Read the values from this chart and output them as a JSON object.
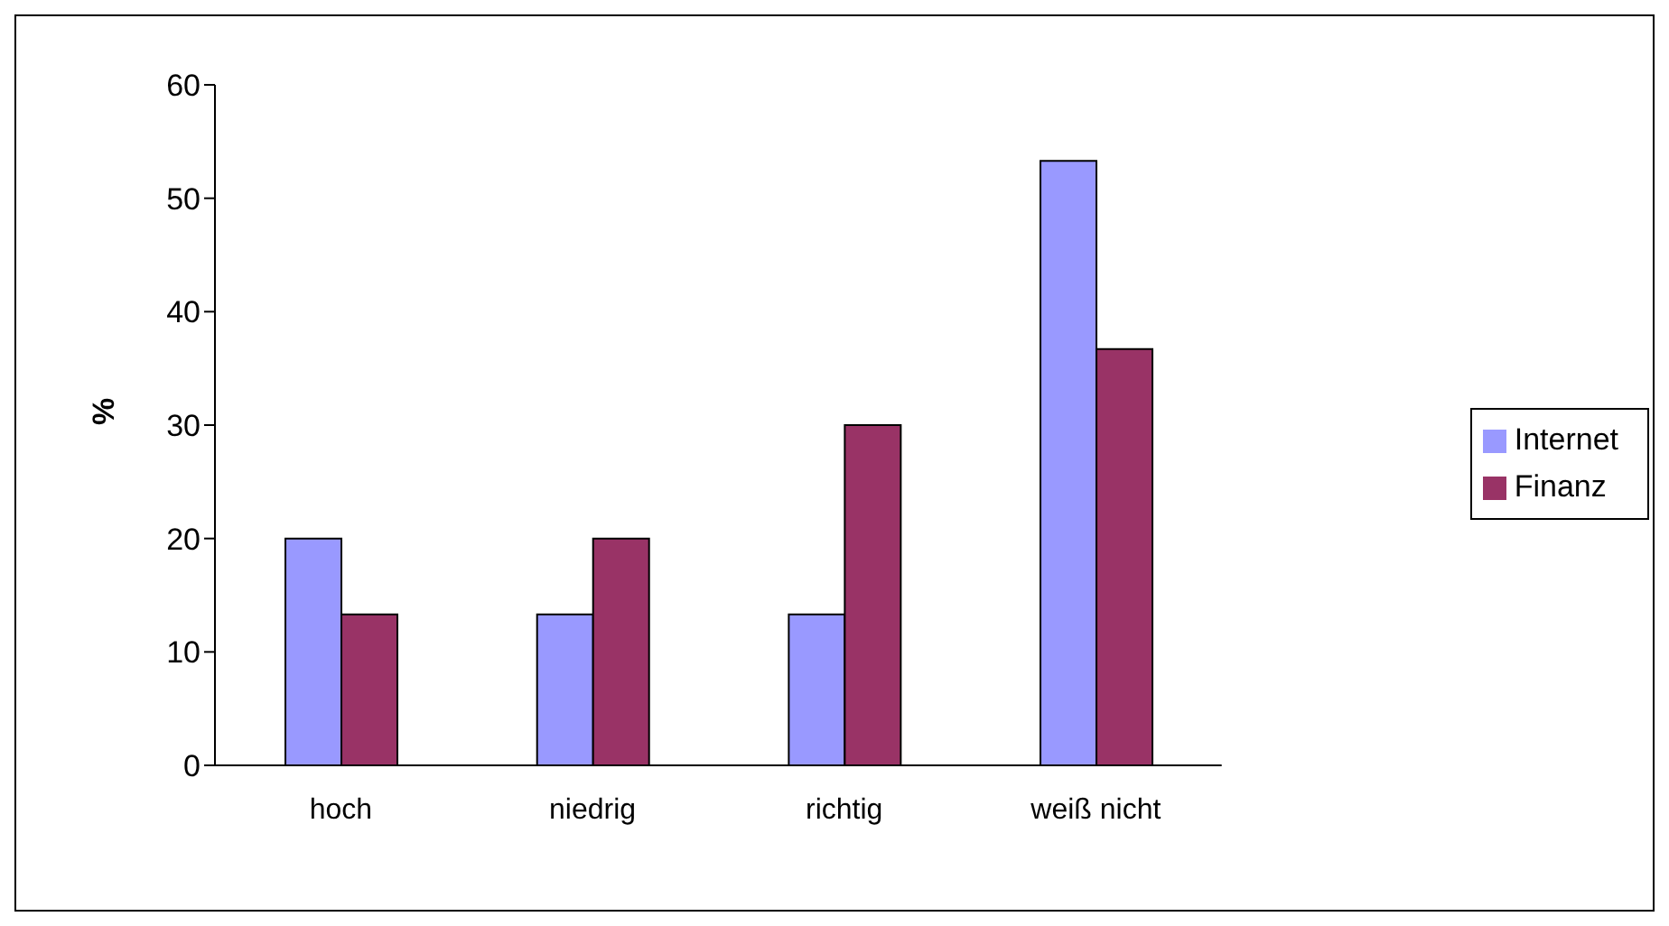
{
  "chart_data": {
    "type": "bar",
    "ylabel": "%",
    "categories": [
      "hoch",
      "niedrig",
      "richtig",
      "weiß nicht"
    ],
    "series": [
      {
        "name": "Internet",
        "color": "#9999ff",
        "values": [
          20,
          13.3,
          13.3,
          53.3
        ]
      },
      {
        "name": "Finanz",
        "color": "#993366",
        "values": [
          13.3,
          20,
          30,
          36.7
        ]
      }
    ],
    "ylim": [
      0,
      60
    ],
    "yticks": [
      0,
      10,
      20,
      30,
      40,
      50,
      60
    ],
    "grid": false,
    "legend": "right"
  }
}
